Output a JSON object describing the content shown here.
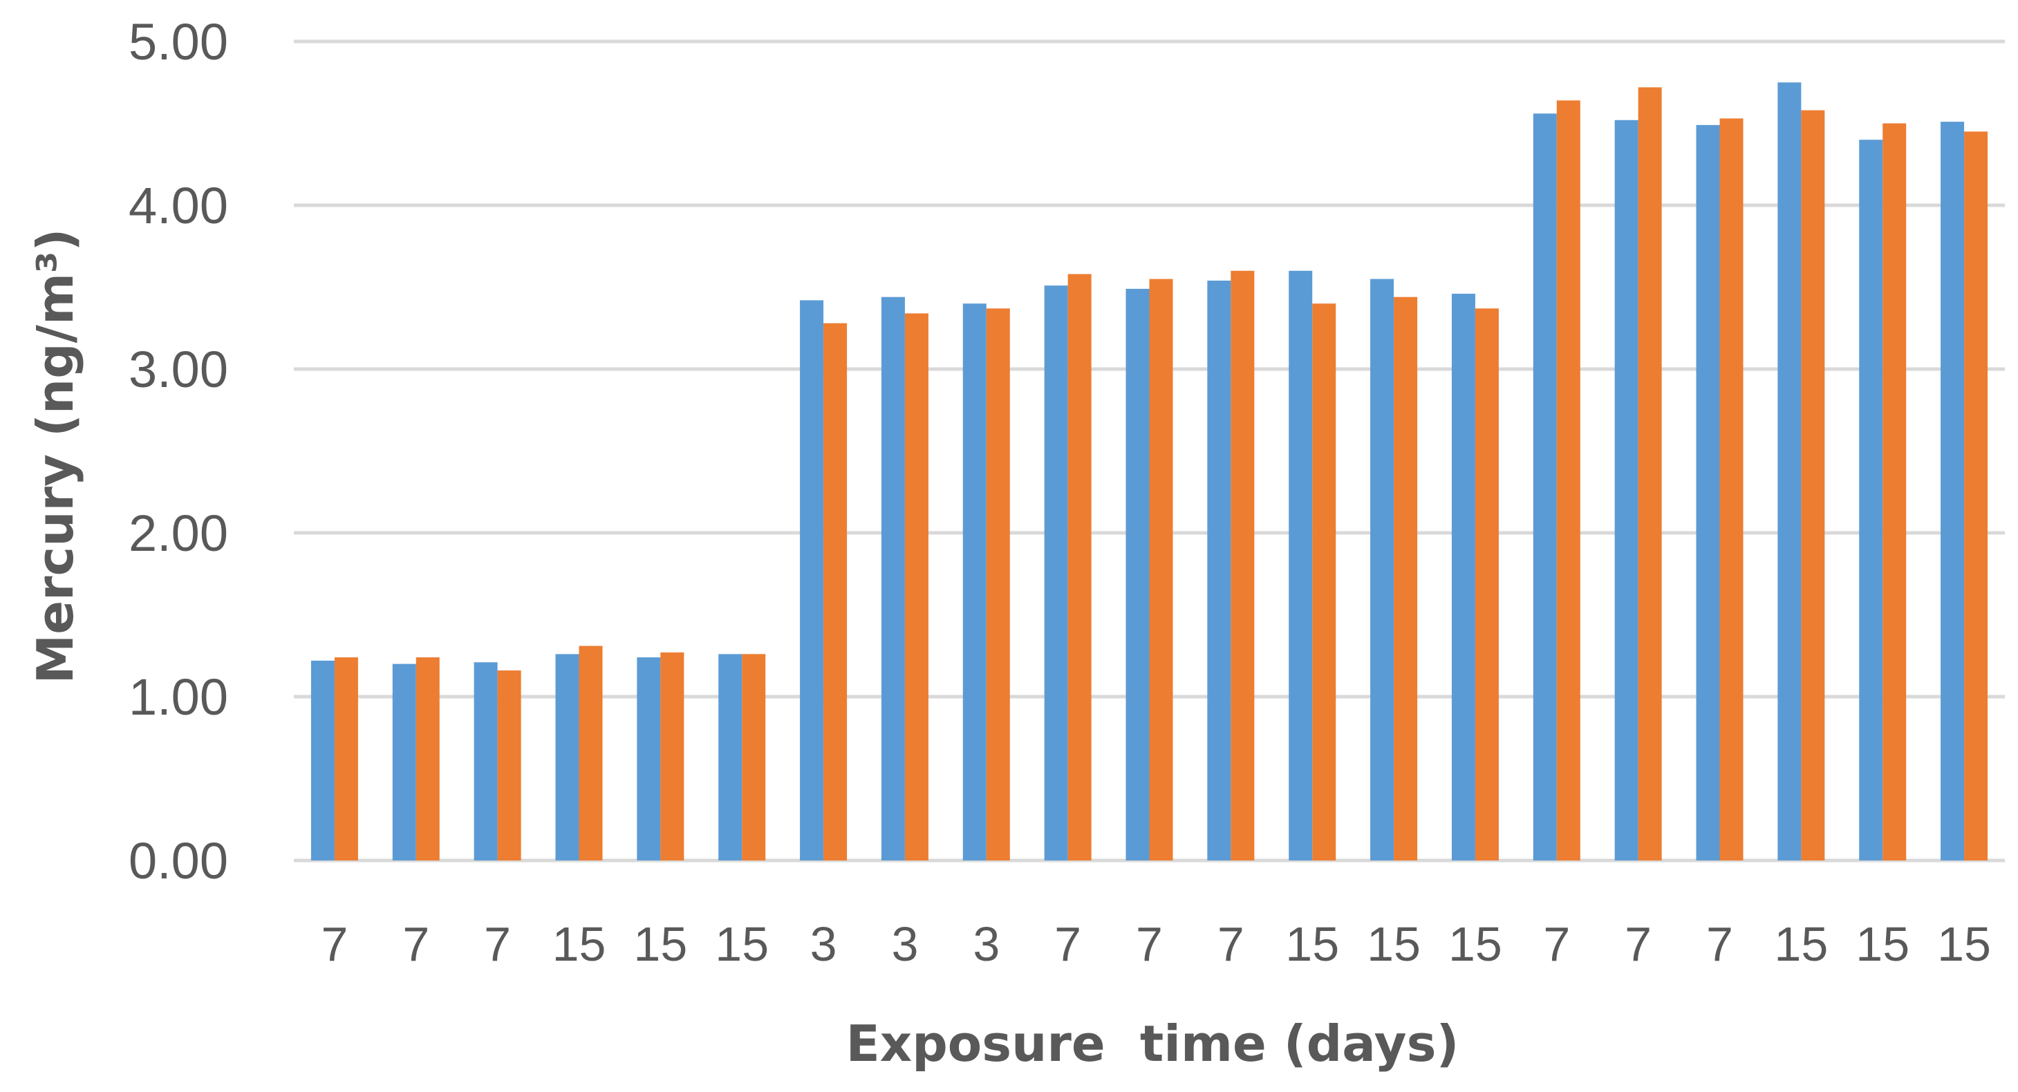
{
  "chart_data": {
    "type": "bar",
    "title": "",
    "xlabel": "Exposure  time (days)",
    "ylabel": "Mercury (ng/m³)",
    "ylim": [
      0,
      5
    ],
    "yticks": [
      "0.00",
      "1.00",
      "2.00",
      "3.00",
      "4.00",
      "5.00"
    ],
    "grid": true,
    "legend": "none",
    "categories": [
      "7",
      "7",
      "7",
      "15",
      "15",
      "15",
      "3",
      "3",
      "3",
      "7",
      "7",
      "7",
      "15",
      "15",
      "15",
      "7",
      "7",
      "7",
      "15",
      "15",
      "15"
    ],
    "series": [
      {
        "color": "#5b9bd5",
        "values": [
          1.22,
          1.2,
          1.21,
          1.26,
          1.24,
          1.26,
          3.42,
          3.44,
          3.4,
          3.51,
          3.49,
          3.54,
          3.6,
          3.55,
          3.46,
          4.56,
          4.52,
          4.49,
          4.75,
          4.4,
          4.51
        ]
      },
      {
        "color": "#ed7d31",
        "values": [
          1.24,
          1.24,
          1.16,
          1.31,
          1.27,
          1.26,
          3.28,
          3.34,
          3.37,
          3.58,
          3.55,
          3.6,
          3.4,
          3.44,
          3.37,
          4.64,
          4.72,
          4.53,
          4.58,
          4.5,
          4.45
        ]
      }
    ]
  }
}
